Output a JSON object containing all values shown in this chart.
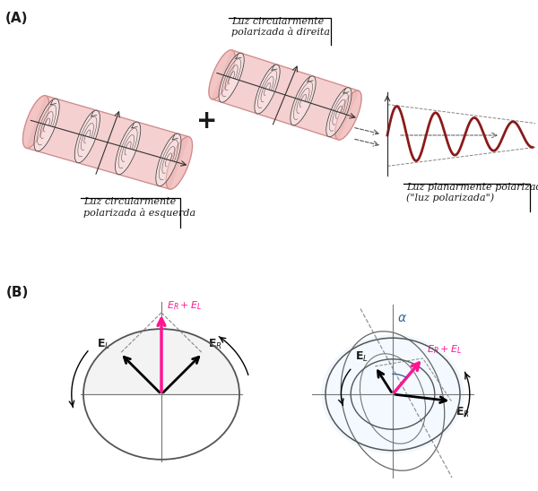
{
  "panel_A_label": "(A)",
  "panel_B_label": "(B)",
  "label_left": "Luz circularmente\npolarizada à esquerda",
  "label_right_top": "Luz circularmente\npolarizada à direita",
  "label_result": "Luz planarmente polarizada\n(\"luz polarizada\")",
  "plus_sign": "+",
  "wave_color": "#8B1A1A",
  "tube_color": "#f0b8b8",
  "tube_edge": "#cc8888",
  "pink_color": "#FF1493",
  "dark_color": "#1a1a1a",
  "gray_color": "#888888",
  "bg_color": "white",
  "circle_edge": "#555555",
  "font_size_label": 8,
  "font_size_panel": 11,
  "font_size_arrows": 9
}
